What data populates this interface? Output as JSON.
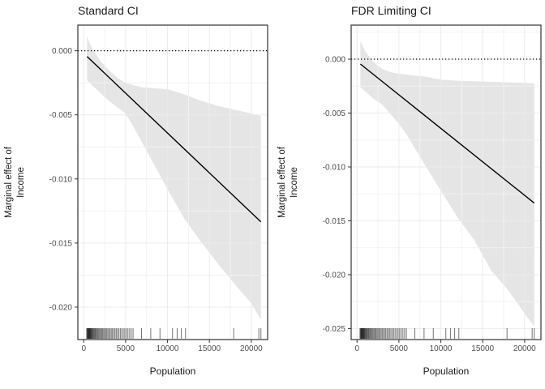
{
  "colors": {
    "estimate_line": "#000000",
    "ribbon_fill": "#e5e5e5",
    "grid_major": "#ebebeb",
    "grid_minor": "#f2f2f2",
    "panel_border": "#333333",
    "tick_mark": "#333333",
    "tick_label": "#4d4d4d",
    "text": "#1a1a1a",
    "background": "#ffffff"
  },
  "chart_data": [
    {
      "type": "line",
      "title": "Standard CI",
      "xlabel": "Population",
      "ylabel_lines": [
        "Marginal effect of",
        "Income"
      ],
      "xlim": [
        -700,
        21950
      ],
      "ylim": [
        -0.02253,
        0.002
      ],
      "x_tick_values": [
        0,
        5000,
        10000,
        15000,
        20000
      ],
      "x_tick_labels": [
        "0",
        "5000",
        "10000",
        "15000",
        "20000"
      ],
      "y_tick_values": [
        0,
        -0.005,
        -0.01,
        -0.015,
        -0.02
      ],
      "y_tick_labels": [
        "0.000",
        "-0.005",
        "-0.010",
        "-0.015",
        "-0.020"
      ],
      "reference_line_y": 0,
      "grid": "major+minor",
      "legend": "none",
      "estimate_line": {
        "x": [
          400,
          21150
        ],
        "y": [
          -0.00045,
          -0.01335
        ]
      },
      "ribbon": {
        "x": [
          400,
          1000,
          2000,
          3000,
          4000,
          5000,
          6000,
          7000,
          8000,
          10000,
          12000,
          14000,
          16000,
          18000,
          20000,
          21150
        ],
        "upper": [
          0.0011,
          0.0002,
          -0.0008,
          -0.0015,
          -0.0021,
          -0.0025,
          -0.0027,
          -0.00285,
          -0.0029,
          -0.003,
          -0.0034,
          -0.0039,
          -0.0043,
          -0.0046,
          -0.0049,
          -0.0051
        ],
        "lower": [
          -0.0023,
          -0.0027,
          -0.0033,
          -0.0039,
          -0.0044,
          -0.0049,
          -0.006,
          -0.0072,
          -0.0084,
          -0.0108,
          -0.0131,
          -0.0149,
          -0.0166,
          -0.0182,
          -0.0197,
          -0.021
        ]
      },
      "rug_x": [
        350,
        420,
        470,
        510,
        550,
        590,
        630,
        670,
        710,
        750,
        800,
        850,
        900,
        960,
        1020,
        1080,
        1150,
        1220,
        1300,
        1380,
        1460,
        1550,
        1640,
        1730,
        1830,
        1930,
        2040,
        2150,
        2260,
        2380,
        2500,
        2620,
        2750,
        2880,
        3010,
        3150,
        3290,
        3430,
        3580,
        3730,
        3880,
        4040,
        4200,
        4370,
        4540,
        4720,
        4900,
        5090,
        5280,
        5480,
        5680,
        5890,
        6900,
        8000,
        9100,
        10600,
        11150,
        11650,
        12150,
        17900,
        20900,
        21150
      ]
    },
    {
      "type": "line",
      "title": "FDR Limiting CI",
      "xlabel": "Population",
      "ylabel_lines": [
        "Marginal effect of",
        "Income"
      ],
      "xlim": [
        -700,
        21950
      ],
      "ylim": [
        -0.02602,
        0.00316
      ],
      "x_tick_values": [
        0,
        5000,
        10000,
        15000,
        20000
      ],
      "x_tick_labels": [
        "0",
        "5000",
        "10000",
        "15000",
        "20000"
      ],
      "y_tick_values": [
        0,
        -0.005,
        -0.01,
        -0.015,
        -0.02,
        -0.025
      ],
      "y_tick_labels": [
        "0.000",
        "-0.005",
        "-0.010",
        "-0.015",
        "-0.020",
        "-0.025"
      ],
      "reference_line_y": 0,
      "grid": "major+minor",
      "legend": "none",
      "estimate_line": {
        "x": [
          400,
          21150
        ],
        "y": [
          -0.00045,
          -0.01335
        ]
      },
      "ribbon": {
        "x": [
          400,
          1000,
          2000,
          3000,
          4000,
          5000,
          6000,
          7000,
          8000,
          10000,
          12000,
          14000,
          16000,
          18000,
          20000,
          21150
        ],
        "upper": [
          0.0017,
          0.0007,
          -0.0003,
          -0.0009,
          -0.0012,
          -0.00135,
          -0.00145,
          -0.00155,
          -0.0016,
          -0.0019,
          -0.002,
          -0.00205,
          -0.0021,
          -0.00215,
          -0.0022,
          -0.00225
        ],
        "lower": [
          -0.0026,
          -0.003,
          -0.0037,
          -0.0042,
          -0.0051,
          -0.006,
          -0.0071,
          -0.0084,
          -0.0097,
          -0.0122,
          -0.0147,
          -0.0168,
          -0.0196,
          -0.0214,
          -0.0236,
          -0.0248
        ]
      },
      "rug_x": [
        350,
        420,
        470,
        510,
        550,
        590,
        630,
        670,
        710,
        750,
        800,
        850,
        900,
        960,
        1020,
        1080,
        1150,
        1220,
        1300,
        1380,
        1460,
        1550,
        1640,
        1730,
        1830,
        1930,
        2040,
        2150,
        2260,
        2380,
        2500,
        2620,
        2750,
        2880,
        3010,
        3150,
        3290,
        3430,
        3580,
        3730,
        3880,
        4040,
        4200,
        4370,
        4540,
        4720,
        4900,
        5090,
        5280,
        5480,
        5680,
        5890,
        6900,
        8000,
        9100,
        10600,
        11150,
        11650,
        12150,
        17900,
        20900,
        21150
      ]
    }
  ]
}
